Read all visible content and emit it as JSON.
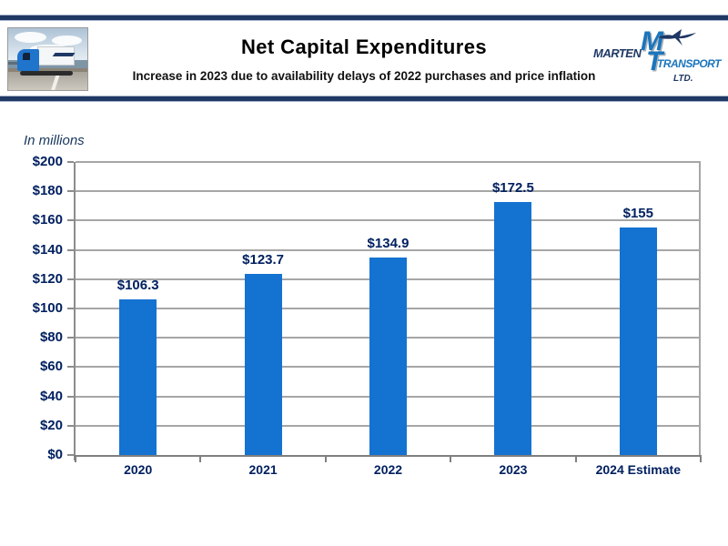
{
  "header": {
    "title": "Net Capital Expenditures",
    "subtitle": "Increase in 2023 due to availability delays of 2022 purchases and price inflation"
  },
  "logo": {
    "marten": "MARTEN",
    "monogram_m": "M",
    "monogram_t": "T",
    "transport": "TRANSPORT",
    "ltd": "LTD."
  },
  "chart_data": {
    "type": "bar",
    "title": "Net Capital Expenditures",
    "units_label": "In millions",
    "categories": [
      "2020",
      "2021",
      "2022",
      "2023",
      "2024 Estimate"
    ],
    "values": [
      106.3,
      123.7,
      134.9,
      172.5,
      155
    ],
    "data_labels": [
      "$106.3",
      "$123.7",
      "$134.9",
      "$172.5",
      "$155"
    ],
    "ylim": [
      0,
      200
    ],
    "ytick_step": 20,
    "ytick_prefix": "$",
    "grid": true,
    "legend": "none"
  },
  "colors": {
    "bar": "#1472D1",
    "axis_text": "#002060",
    "units_text": "#17375E",
    "header_rule": "#1F3864",
    "gridline": "#A6A6A6",
    "logo_blue": "#1B75BC",
    "logo_navy": "#1F3864"
  }
}
